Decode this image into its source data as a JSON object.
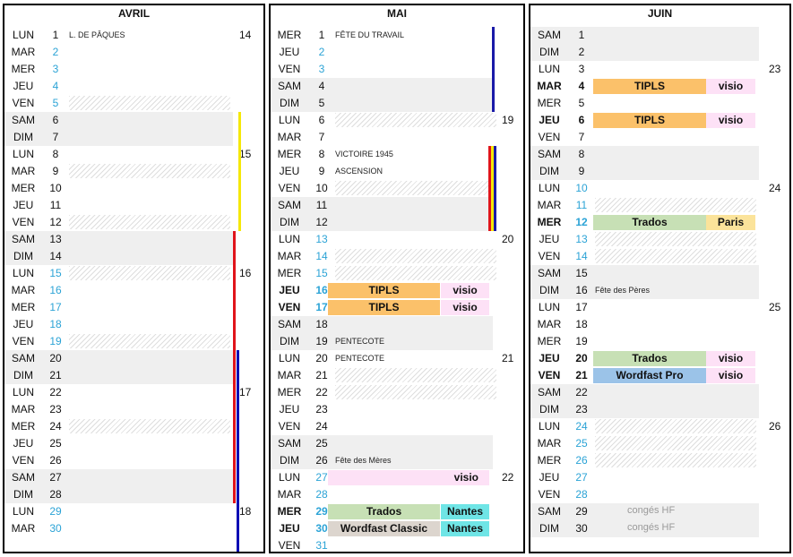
{
  "months": [
    {
      "name": "AVRIL",
      "days": [
        {
          "d": "LUN",
          "n": "1",
          "event": "L. DE PÂQUES"
        },
        {
          "d": "MAR",
          "n": "2",
          "blue": true
        },
        {
          "d": "MER",
          "n": "3",
          "blue": true
        },
        {
          "d": "JEU",
          "n": "4",
          "blue": true
        },
        {
          "d": "VEN",
          "n": "5",
          "blue": true,
          "hatch": true
        },
        {
          "d": "SAM",
          "n": "6",
          "shade": true
        },
        {
          "d": "DIM",
          "n": "7",
          "shade": true
        },
        {
          "d": "LUN",
          "n": "8"
        },
        {
          "d": "MAR",
          "n": "9",
          "hatch": true
        },
        {
          "d": "MER",
          "n": "10"
        },
        {
          "d": "JEU",
          "n": "11"
        },
        {
          "d": "VEN",
          "n": "12",
          "hatch": true
        },
        {
          "d": "SAM",
          "n": "13",
          "shade": true
        },
        {
          "d": "DIM",
          "n": "14",
          "shade": true
        },
        {
          "d": "LUN",
          "n": "15",
          "blue": true,
          "hatch": true
        },
        {
          "d": "MAR",
          "n": "16",
          "blue": true
        },
        {
          "d": "MER",
          "n": "17",
          "blue": true
        },
        {
          "d": "JEU",
          "n": "18",
          "blue": true
        },
        {
          "d": "VEN",
          "n": "19",
          "blue": true,
          "hatch": true
        },
        {
          "d": "SAM",
          "n": "20",
          "shade": true
        },
        {
          "d": "DIM",
          "n": "21",
          "shade": true
        },
        {
          "d": "LUN",
          "n": "22"
        },
        {
          "d": "MAR",
          "n": "23"
        },
        {
          "d": "MER",
          "n": "24",
          "hatch": true
        },
        {
          "d": "JEU",
          "n": "25"
        },
        {
          "d": "VEN",
          "n": "26"
        },
        {
          "d": "SAM",
          "n": "27",
          "shade": true
        },
        {
          "d": "DIM",
          "n": "28",
          "shade": true
        },
        {
          "d": "LUN",
          "n": "29",
          "blue": true
        },
        {
          "d": "MAR",
          "n": "30",
          "blue": true
        }
      ],
      "weeks": [
        {
          "row": 0,
          "w": "14"
        },
        {
          "row": 7,
          "w": "15"
        },
        {
          "row": 14,
          "w": "16"
        },
        {
          "row": 21,
          "w": "17"
        },
        {
          "row": 28,
          "w": "18"
        }
      ]
    },
    {
      "name": "MAI",
      "days": [
        {
          "d": "MER",
          "n": "1",
          "event": "FÊTE DU TRAVAIL"
        },
        {
          "d": "JEU",
          "n": "2",
          "blue": true
        },
        {
          "d": "VEN",
          "n": "3",
          "blue": true
        },
        {
          "d": "SAM",
          "n": "4",
          "shade": true
        },
        {
          "d": "DIM",
          "n": "5",
          "shade": true
        },
        {
          "d": "LUN",
          "n": "6",
          "hatch": true
        },
        {
          "d": "MAR",
          "n": "7"
        },
        {
          "d": "MER",
          "n": "8",
          "event": "VICTOIRE 1945"
        },
        {
          "d": "JEU",
          "n": "9",
          "event": "ASCENSION"
        },
        {
          "d": "VEN",
          "n": "10",
          "hatch": true
        },
        {
          "d": "SAM",
          "n": "11",
          "shade": true
        },
        {
          "d": "DIM",
          "n": "12",
          "shade": true
        },
        {
          "d": "LUN",
          "n": "13",
          "blue": true
        },
        {
          "d": "MAR",
          "n": "14",
          "blue": true,
          "hatch": true
        },
        {
          "d": "MER",
          "n": "15",
          "blue": true,
          "hatch": true
        },
        {
          "d": "JEU",
          "n": "16",
          "blue": true,
          "bold": true,
          "box1": "TIPLS",
          "c1": "o",
          "box2": "visio",
          "c2": "pk"
        },
        {
          "d": "VEN",
          "n": "17",
          "blue": true,
          "bold": true,
          "box1": "TIPLS",
          "c1": "o",
          "box2": "visio",
          "c2": "pk"
        },
        {
          "d": "SAM",
          "n": "18",
          "shade": true
        },
        {
          "d": "DIM",
          "n": "19",
          "shade": true,
          "event": "PENTECOTE"
        },
        {
          "d": "LUN",
          "n": "20",
          "event": "PENTECOTE"
        },
        {
          "d": "MAR",
          "n": "21",
          "hatch": true
        },
        {
          "d": "MER",
          "n": "22",
          "hatch": true
        },
        {
          "d": "JEU",
          "n": "23"
        },
        {
          "d": "VEN",
          "n": "24"
        },
        {
          "d": "SAM",
          "n": "25",
          "shade": true
        },
        {
          "d": "DIM",
          "n": "26",
          "shade": true,
          "event": "Fête des Mères"
        },
        {
          "d": "LUN",
          "n": "27",
          "blue": true,
          "box2": "visio",
          "c2": "pk",
          "wide2": true
        },
        {
          "d": "MAR",
          "n": "28",
          "blue": true
        },
        {
          "d": "MER",
          "n": "29",
          "blue": true,
          "bold": true,
          "box1": "Trados",
          "c1": "gr",
          "box2": "Nantes",
          "c2": "cy"
        },
        {
          "d": "JEU",
          "n": "30",
          "blue": true,
          "bold": true,
          "box1": "Wordfast Classic",
          "c1": "gy",
          "box2": "Nantes",
          "c2": "cy"
        },
        {
          "d": "VEN",
          "n": "31",
          "blue": true
        }
      ],
      "weeks": [
        {
          "row": 5,
          "w": "19"
        },
        {
          "row": 12,
          "w": "20"
        },
        {
          "row": 19,
          "w": "21"
        },
        {
          "row": 26,
          "w": "22"
        }
      ]
    },
    {
      "name": "JUIN",
      "days": [
        {
          "d": "SAM",
          "n": "1",
          "shade": true
        },
        {
          "d": "DIM",
          "n": "2",
          "shade": true
        },
        {
          "d": "LUN",
          "n": "3"
        },
        {
          "d": "MAR",
          "n": "4",
          "bold": true,
          "box1": "TIPLS",
          "c1": "o",
          "box2": "visio",
          "c2": "pk"
        },
        {
          "d": "MER",
          "n": "5"
        },
        {
          "d": "JEU",
          "n": "6",
          "bold": true,
          "box1": "TIPLS",
          "c1": "o",
          "box2": "visio",
          "c2": "pk"
        },
        {
          "d": "VEN",
          "n": "7"
        },
        {
          "d": "SAM",
          "n": "8",
          "shade": true
        },
        {
          "d": "DIM",
          "n": "9",
          "shade": true
        },
        {
          "d": "LUN",
          "n": "10",
          "blue": true
        },
        {
          "d": "MAR",
          "n": "11",
          "blue": true,
          "hatch": true
        },
        {
          "d": "MER",
          "n": "12",
          "blue": true,
          "bold": true,
          "box1": "Trados",
          "c1": "gr",
          "box2": "Paris",
          "c2": "yel"
        },
        {
          "d": "JEU",
          "n": "13",
          "blue": true,
          "hatch": true
        },
        {
          "d": "VEN",
          "n": "14",
          "blue": true,
          "hatch": true
        },
        {
          "d": "SAM",
          "n": "15",
          "shade": true
        },
        {
          "d": "DIM",
          "n": "16",
          "shade": true,
          "event": "Fête des Pères"
        },
        {
          "d": "LUN",
          "n": "17"
        },
        {
          "d": "MAR",
          "n": "18"
        },
        {
          "d": "MER",
          "n": "19"
        },
        {
          "d": "JEU",
          "n": "20",
          "bold": true,
          "box1": "Trados",
          "c1": "gr",
          "box2": "visio",
          "c2": "pk"
        },
        {
          "d": "VEN",
          "n": "21",
          "bold": true,
          "box1": "Wordfast Pro",
          "c1": "bl",
          "box2": "visio",
          "c2": "pk"
        },
        {
          "d": "SAM",
          "n": "22",
          "shade": true
        },
        {
          "d": "DIM",
          "n": "23",
          "shade": true
        },
        {
          "d": "LUN",
          "n": "24",
          "blue": true,
          "hatch": true
        },
        {
          "d": "MAR",
          "n": "25",
          "blue": true,
          "hatch": true
        },
        {
          "d": "MER",
          "n": "26",
          "blue": true,
          "hatch": true
        },
        {
          "d": "JEU",
          "n": "27",
          "blue": true
        },
        {
          "d": "VEN",
          "n": "28",
          "blue": true
        },
        {
          "d": "SAM",
          "n": "29",
          "shade": true,
          "conge": "congés HF"
        },
        {
          "d": "DIM",
          "n": "30",
          "shade": true,
          "conge": "congés HF"
        }
      ],
      "weeks": [
        {
          "row": 2,
          "w": "23"
        },
        {
          "row": 9,
          "w": "24"
        },
        {
          "row": 16,
          "w": "25"
        },
        {
          "row": 23,
          "w": "26"
        }
      ]
    }
  ],
  "colors": {
    "blue_num": "#2ba3d6",
    "tipls": "#fbc16a",
    "visio": "#fde1f6",
    "trados": "#c7e0b5",
    "wordfast_pro": "#9bc3e8",
    "nantes": "#6fe5e6",
    "paris": "#fbe39a"
  }
}
